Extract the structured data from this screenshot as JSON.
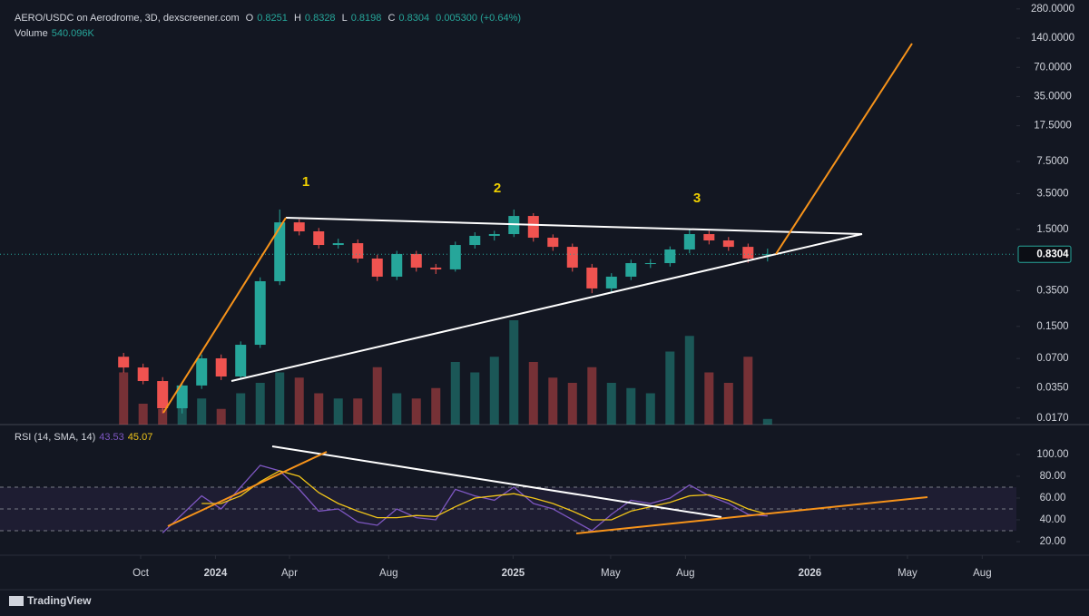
{
  "header": {
    "symbol": "AERO/USDC on Aerodrome, 3D, dexscreener.com",
    "ohlc": [
      {
        "key": "O",
        "value": "0.8251"
      },
      {
        "key": "H",
        "value": "0.8328"
      },
      {
        "key": "L",
        "value": "0.8198"
      },
      {
        "key": "C",
        "value": "0.8304"
      }
    ],
    "change": "0.005300 (+0.64%)",
    "volume_label": "Volume",
    "volume_value": "540.096K"
  },
  "footer": {
    "brand": "TradingView"
  },
  "chart_data": [
    {
      "type": "candlestick",
      "log_scale": true,
      "up_color": "#26a69a",
      "down_color": "#ef5350",
      "xlim": [
        -265,
        985
      ],
      "ylim": [
        0.0146,
        346
      ],
      "yticks": [
        {
          "value": 280,
          "label": "280.0000"
        },
        {
          "value": 140,
          "label": "140.0000"
        },
        {
          "value": 70,
          "label": "70.0000"
        },
        {
          "value": 35,
          "label": "35.0000"
        },
        {
          "value": 17.5,
          "label": "17.5000"
        },
        {
          "value": 7.5,
          "label": "7.5000"
        },
        {
          "value": 3.5,
          "label": "3.5000"
        },
        {
          "value": 1.5,
          "label": "1.5000"
        },
        {
          "value": 0.35,
          "label": "0.3500"
        },
        {
          "value": 0.15,
          "label": "0.1500"
        },
        {
          "value": 0.07,
          "label": "0.0700"
        },
        {
          "value": 0.035,
          "label": "0.0350"
        },
        {
          "value": 0.017,
          "label": "0.0170"
        }
      ],
      "annotations": [
        "1",
        "2",
        "3"
      ],
      "x": [
        -113,
        -89,
        -65,
        -41,
        -17,
        7,
        31,
        55,
        79,
        103,
        127,
        151,
        175,
        199,
        223,
        247,
        271,
        295,
        319,
        343,
        367,
        391,
        415,
        439,
        463,
        487,
        511,
        535,
        559,
        583,
        607,
        631,
        655,
        679
      ],
      "open": [
        0.073,
        0.0566,
        0.041,
        0.0215,
        0.0369,
        0.0703,
        0.0457,
        0.097,
        0.438,
        1.77,
        1.43,
        1.035,
        1.08,
        0.75,
        0.488,
        0.836,
        0.605,
        0.58,
        1.035,
        1.285,
        1.34,
        2.06,
        1.23,
        0.99,
        0.605,
        0.369,
        0.488,
        0.673,
        0.673,
        0.93,
        1.34,
        1.153,
        0.99,
        0.8251
      ],
      "high": [
        0.08,
        0.062,
        0.045,
        0.04,
        0.077,
        0.077,
        0.105,
        0.48,
        2.4,
        1.9,
        1.55,
        1.2,
        1.18,
        0.82,
        0.9,
        0.9,
        0.66,
        1.12,
        1.4,
        1.45,
        2.4,
        2.2,
        1.33,
        1.07,
        0.66,
        0.53,
        0.73,
        0.74,
        1.0,
        1.5,
        1.45,
        1.25,
        1.07,
        0.95
      ],
      "low": [
        0.05,
        0.038,
        0.019,
        0.019,
        0.034,
        0.042,
        0.043,
        0.09,
        0.4,
        1.3,
        0.95,
        0.95,
        0.68,
        0.44,
        0.45,
        0.55,
        0.52,
        0.55,
        0.95,
        1.15,
        1.25,
        1.12,
        0.9,
        0.55,
        0.33,
        0.34,
        0.45,
        0.6,
        0.62,
        0.85,
        1.05,
        0.9,
        0.68,
        0.7
      ],
      "close": [
        0.0566,
        0.041,
        0.0215,
        0.0369,
        0.0703,
        0.0457,
        0.097,
        0.438,
        1.77,
        1.43,
        1.035,
        1.08,
        0.75,
        0.488,
        0.836,
        0.605,
        0.58,
        1.035,
        1.285,
        1.34,
        2.06,
        1.23,
        0.99,
        0.605,
        0.369,
        0.488,
        0.673,
        0.673,
        0.93,
        1.34,
        1.153,
        0.99,
        0.75,
        0.8304
      ],
      "volume": [
        5000000,
        2000000,
        1500000,
        1800000,
        2500000,
        1500000,
        3000000,
        4000000,
        5000000,
        4500000,
        3000000,
        2500000,
        2500000,
        5500000,
        3000000,
        2500000,
        3500000,
        6000000,
        5000000,
        6500000,
        10000000,
        6000000,
        4500000,
        4000000,
        5500000,
        4000000,
        3500000,
        3000000,
        7000000,
        8500000,
        5000000,
        4000000,
        6500000,
        540096
      ]
    },
    {
      "type": "line",
      "title": "RSI (14, SMA, 14)",
      "xlim": [
        -265,
        985
      ],
      "ylim": [
        7.5,
        125.8
      ],
      "yticks": [
        {
          "value": 100,
          "label": "100.00"
        },
        {
          "value": 80,
          "label": "80.00"
        },
        {
          "value": 60,
          "label": "60.00"
        },
        {
          "value": 40,
          "label": "40.00"
        },
        {
          "value": 20,
          "label": "20.00"
        }
      ],
      "levels": [
        70,
        50,
        30
      ],
      "xticks": [
        {
          "value": -92,
          "label": "Oct"
        },
        {
          "value": 0,
          "label": "2024"
        },
        {
          "value": 91,
          "label": "Apr"
        },
        {
          "value": 213,
          "label": "Aug"
        },
        {
          "value": 366,
          "label": "2025"
        },
        {
          "value": 486,
          "label": "May"
        },
        {
          "value": 578,
          "label": "Aug"
        },
        {
          "value": 731,
          "label": "2026"
        },
        {
          "value": 851,
          "label": "May"
        },
        {
          "value": 943,
          "label": "Aug"
        }
      ],
      "x": [
        -113,
        -89,
        -65,
        -41,
        -17,
        7,
        31,
        55,
        79,
        103,
        127,
        151,
        175,
        199,
        223,
        247,
        271,
        295,
        319,
        343,
        367,
        391,
        415,
        439,
        463,
        487,
        511,
        535,
        559,
        583,
        607,
        631,
        655,
        679
      ],
      "series": [
        {
          "name": "RSI",
          "color": "#7e57c2",
          "values": [
            null,
            null,
            28,
            45,
            62,
            50,
            70,
            90,
            85,
            68,
            48,
            50,
            38,
            35,
            50,
            42,
            40,
            68,
            62,
            58,
            70,
            55,
            50,
            40,
            30,
            45,
            58,
            55,
            60,
            72,
            62,
            55,
            45,
            43.53
          ]
        },
        {
          "name": "SMA",
          "color": "#f0c419",
          "values": [
            null,
            null,
            null,
            null,
            55,
            55,
            62,
            75,
            85,
            80,
            65,
            55,
            48,
            42,
            42,
            44,
            43,
            52,
            60,
            62,
            64,
            60,
            55,
            48,
            40,
            40,
            48,
            52,
            56,
            62,
            63,
            58,
            50,
            45.07
          ]
        }
      ]
    }
  ]
}
